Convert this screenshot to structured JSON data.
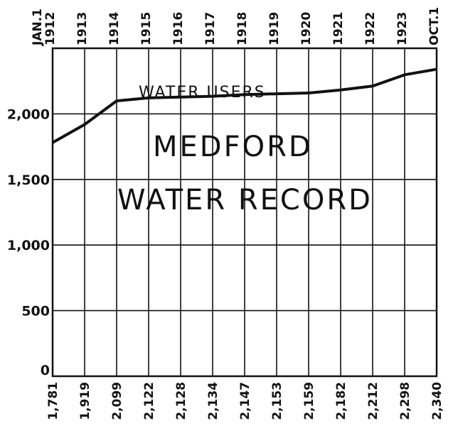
{
  "chart_data": {
    "type": "line",
    "title": "",
    "xlabel": "",
    "ylabel": "",
    "top_labels": [
      "JAN.1 1912",
      "1913",
      "1914",
      "1915",
      "1916",
      "1917",
      "1918",
      "1919",
      "1920",
      "1921",
      "1922",
      "1923",
      "OCT.1"
    ],
    "bottom_labels": [
      "1,781",
      "1,919",
      "2,099",
      "2,122",
      "2,128",
      "2,134",
      "2,147",
      "2,153",
      "2,159",
      "2,182",
      "2,212",
      "2,298",
      "2,340"
    ],
    "series": [
      {
        "name": "WATER USERS",
        "values": [
          1781,
          1919,
          2099,
          2122,
          2128,
          2134,
          2147,
          2153,
          2159,
          2182,
          2212,
          2298,
          2340
        ]
      }
    ],
    "y_ticks": [
      "0",
      "500",
      "1,000",
      "1,500",
      "2,000"
    ],
    "y_tick_values": [
      0,
      500,
      1000,
      1500,
      2000
    ],
    "ylim": [
      0,
      2500
    ],
    "grid": true,
    "annotations": {
      "series_label": "WATER USERS",
      "line1": "MEDFORD",
      "line2": "WATER RECORD"
    },
    "colors": {
      "ink": "#111111",
      "background": "#ffffff"
    }
  }
}
